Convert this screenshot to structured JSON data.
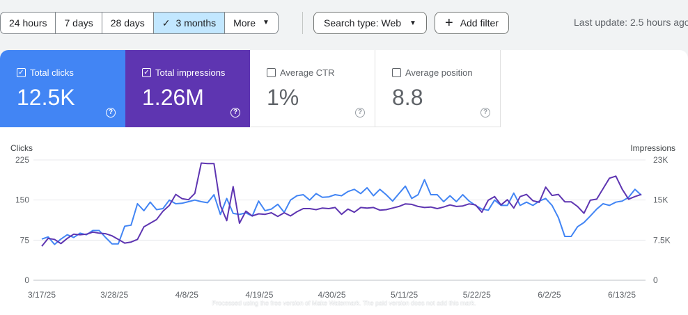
{
  "toolbar": {
    "ranges": [
      {
        "label": "24 hours",
        "active": false
      },
      {
        "label": "7 days",
        "active": false
      },
      {
        "label": "28 days",
        "active": false
      },
      {
        "label": "3 months",
        "active": true
      }
    ],
    "more_label": "More",
    "search_type_label": "Search type: Web",
    "add_filter_label": "Add filter",
    "last_update": "Last update: 2.5 hours ago"
  },
  "metrics": {
    "clicks": {
      "label": "Total clicks",
      "value": "12.5K",
      "checked": true,
      "color": "#4285f4"
    },
    "impressions": {
      "label": "Total impressions",
      "value": "1.26M",
      "checked": true,
      "color": "#5e35b1"
    },
    "ctr": {
      "label": "Average CTR",
      "value": "1%",
      "checked": false
    },
    "position": {
      "label": "Average position",
      "value": "8.8",
      "checked": false
    }
  },
  "chart_data": {
    "type": "line",
    "ylabel_left": "Clicks",
    "ylabel_right": "Impressions",
    "yticks_left": [
      "225",
      "150",
      "75",
      "0"
    ],
    "yticks_right": [
      "23K",
      "15K",
      "7.5K",
      "0"
    ],
    "ylim_left": [
      0,
      225
    ],
    "ylim_right": [
      0,
      23000
    ],
    "x_ticks": [
      "3/17/25",
      "3/28/25",
      "4/8/25",
      "4/19/25",
      "4/30/25",
      "5/11/25",
      "5/22/25",
      "6/2/25",
      "6/13/25"
    ],
    "grid": true,
    "series": [
      {
        "name": "Clicks",
        "axis": "left",
        "color": "#4285f4",
        "values": [
          77,
          81,
          67,
          77,
          85,
          80,
          88,
          85,
          93,
          93,
          80,
          68,
          68,
          101,
          103,
          143,
          130,
          146,
          132,
          134,
          150,
          143,
          144,
          147,
          150,
          147,
          145,
          160,
          123,
          153,
          125,
          123,
          126,
          120,
          148,
          130,
          133,
          142,
          127,
          150,
          158,
          160,
          150,
          162,
          155,
          156,
          160,
          158,
          166,
          170,
          162,
          173,
          158,
          170,
          160,
          148,
          162,
          176,
          153,
          160,
          188,
          160,
          160,
          147,
          158,
          147,
          160,
          148,
          140,
          133,
          131,
          150,
          140,
          140,
          163,
          140,
          146,
          140,
          148,
          153,
          140,
          117,
          82,
          82,
          100,
          108,
          120,
          133,
          143,
          140,
          146,
          148,
          155,
          170,
          159
        ]
      },
      {
        "name": "Impressions",
        "axis": "right",
        "color": "#5e35b1",
        "values": [
          6500,
          8000,
          7800,
          7000,
          8000,
          8800,
          8700,
          8800,
          9200,
          9000,
          8900,
          8500,
          7800,
          7100,
          7300,
          7800,
          10200,
          10900,
          11600,
          13200,
          14300,
          16400,
          15600,
          15400,
          16600,
          22400,
          22300,
          22300,
          14300,
          11400,
          17900,
          10900,
          13200,
          12300,
          12700,
          12600,
          12900,
          12200,
          12900,
          12300,
          13100,
          13700,
          13700,
          13500,
          13800,
          13700,
          13900,
          12600,
          13600,
          13000,
          13900,
          13800,
          13900,
          13400,
          13500,
          13800,
          14100,
          14600,
          14500,
          14100,
          13900,
          14000,
          13700,
          14000,
          14400,
          14100,
          14200,
          14600,
          14400,
          13000,
          15300,
          16000,
          14400,
          15400,
          13800,
          16000,
          16400,
          15200,
          14900,
          17800,
          16200,
          16400,
          15000,
          15000,
          14100,
          12800,
          15300,
          15500,
          17500,
          19500,
          19900,
          17400,
          15500,
          16000,
          16400
        ]
      }
    ]
  },
  "watermark_text": "Processed using the free version of Make Watermark. The paid version does not add this mark."
}
